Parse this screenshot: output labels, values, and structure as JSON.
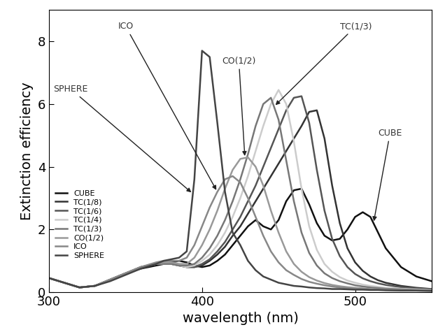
{
  "chart_data": {
    "type": "line",
    "x_label": "wavelength (nm)",
    "y_label": "Extinction efficiency",
    "x": [
      300,
      310,
      320,
      330,
      340,
      350,
      360,
      370,
      375,
      380,
      385,
      390,
      395,
      400,
      405,
      410,
      415,
      420,
      425,
      430,
      435,
      440,
      445,
      450,
      455,
      460,
      465,
      470,
      475,
      480,
      485,
      490,
      495,
      500,
      505,
      510,
      515,
      520,
      530,
      540,
      550
    ],
    "series": [
      {
        "name": "CUBE",
        "color": "#111111",
        "values": [
          0.45,
          0.3,
          0.15,
          0.2,
          0.4,
          0.6,
          0.75,
          0.85,
          0.9,
          0.95,
          1.0,
          0.95,
          0.85,
          0.8,
          0.85,
          1.0,
          1.2,
          1.5,
          1.8,
          2.1,
          2.3,
          2.1,
          2.0,
          2.3,
          2.9,
          3.25,
          3.3,
          2.8,
          2.2,
          1.8,
          1.65,
          1.7,
          2.0,
          2.4,
          2.55,
          2.4,
          1.9,
          1.4,
          0.8,
          0.5,
          0.35
        ]
      },
      {
        "name": "TC(1/8)",
        "color": "#333333",
        "values": [
          0.45,
          0.3,
          0.15,
          0.2,
          0.4,
          0.6,
          0.8,
          0.9,
          0.9,
          0.9,
          0.85,
          0.8,
          0.8,
          0.85,
          1.0,
          1.2,
          1.45,
          1.8,
          2.1,
          2.5,
          2.9,
          3.3,
          3.7,
          4.1,
          4.5,
          4.9,
          5.3,
          5.75,
          5.8,
          4.9,
          3.4,
          2.2,
          1.4,
          0.95,
          0.68,
          0.5,
          0.38,
          0.3,
          0.2,
          0.14,
          0.1
        ]
      },
      {
        "name": "TC(1/6)",
        "color": "#555555",
        "values": [
          0.45,
          0.3,
          0.15,
          0.2,
          0.4,
          0.6,
          0.8,
          0.9,
          0.9,
          0.9,
          0.85,
          0.8,
          0.8,
          0.9,
          1.05,
          1.3,
          1.6,
          2.0,
          2.4,
          2.9,
          3.4,
          4.0,
          4.6,
          5.2,
          5.8,
          6.2,
          6.25,
          5.4,
          3.9,
          2.6,
          1.7,
          1.15,
          0.8,
          0.58,
          0.44,
          0.35,
          0.28,
          0.23,
          0.16,
          0.12,
          0.09
        ]
      },
      {
        "name": "TC(1/4)",
        "color": "#cccccc",
        "values": [
          0.45,
          0.3,
          0.15,
          0.2,
          0.4,
          0.6,
          0.8,
          0.9,
          0.9,
          0.9,
          0.85,
          0.8,
          0.85,
          1.0,
          1.2,
          1.5,
          1.9,
          2.4,
          3.0,
          3.7,
          4.5,
          5.3,
          6.0,
          6.45,
          6.0,
          4.8,
          3.3,
          2.1,
          1.35,
          0.9,
          0.65,
          0.48,
          0.37,
          0.3,
          0.24,
          0.2,
          0.17,
          0.14,
          0.11,
          0.09,
          0.07
        ]
      },
      {
        "name": "TC(1/3)",
        "color": "#777777",
        "values": [
          0.45,
          0.3,
          0.15,
          0.2,
          0.4,
          0.6,
          0.8,
          0.9,
          0.9,
          0.9,
          0.85,
          0.85,
          0.9,
          1.1,
          1.4,
          1.8,
          2.3,
          2.9,
          3.6,
          4.4,
          5.3,
          6.0,
          6.2,
          5.5,
          4.2,
          2.9,
          1.9,
          1.25,
          0.85,
          0.6,
          0.45,
          0.35,
          0.28,
          0.22,
          0.18,
          0.15,
          0.13,
          0.11,
          0.09,
          0.07,
          0.06
        ]
      },
      {
        "name": "CO(1/2)",
        "color": "#999999",
        "values": [
          0.45,
          0.3,
          0.15,
          0.2,
          0.4,
          0.6,
          0.8,
          0.9,
          0.95,
          0.95,
          0.9,
          0.9,
          1.1,
          1.5,
          2.0,
          2.6,
          3.3,
          3.9,
          4.25,
          4.3,
          4.0,
          3.4,
          2.6,
          1.9,
          1.3,
          0.9,
          0.65,
          0.48,
          0.37,
          0.29,
          0.23,
          0.19,
          0.16,
          0.14,
          0.12,
          0.1,
          0.09,
          0.08,
          0.07,
          0.06,
          0.05
        ]
      },
      {
        "name": "ICO",
        "color": "#888888",
        "values": [
          0.45,
          0.3,
          0.15,
          0.2,
          0.4,
          0.6,
          0.8,
          0.95,
          1.0,
          1.0,
          1.0,
          1.1,
          1.5,
          2.1,
          2.7,
          3.2,
          3.6,
          3.7,
          3.5,
          3.0,
          2.4,
          1.8,
          1.3,
          0.95,
          0.7,
          0.55,
          0.42,
          0.33,
          0.27,
          0.22,
          0.18,
          0.15,
          0.13,
          0.11,
          0.1,
          0.09,
          0.08,
          0.07,
          0.06,
          0.05,
          0.04
        ]
      },
      {
        "name": "SPHERE",
        "color": "#444444",
        "values": [
          0.45,
          0.3,
          0.15,
          0.2,
          0.35,
          0.55,
          0.75,
          0.9,
          1.0,
          1.05,
          1.1,
          1.3,
          3.6,
          7.7,
          7.5,
          5.4,
          3.2,
          1.9,
          1.5,
          1.0,
          0.7,
          0.5,
          0.4,
          0.3,
          0.25,
          0.2,
          0.18,
          0.15,
          0.13,
          0.12,
          0.1,
          0.1,
          0.09,
          0.08,
          0.08,
          0.07,
          0.07,
          0.06,
          0.05,
          0.05,
          0.04
        ]
      }
    ],
    "annotations": [
      {
        "text": "SPHERE",
        "series": "SPHERE"
      },
      {
        "text": "ICO",
        "series": "ICO"
      },
      {
        "text": "CO(1/2)",
        "series": "CO(1/2)"
      },
      {
        "text": "TC(1/3)",
        "series": "TC(1/3)"
      },
      {
        "text": "CUBE",
        "series": "CUBE"
      }
    ],
    "xlim": [
      300,
      550
    ],
    "xticks": [
      300,
      400,
      500
    ],
    "ylim": [
      0,
      9
    ],
    "yticks": [
      0,
      2,
      4,
      6,
      8
    ],
    "legend": "lower left",
    "grid": false
  }
}
